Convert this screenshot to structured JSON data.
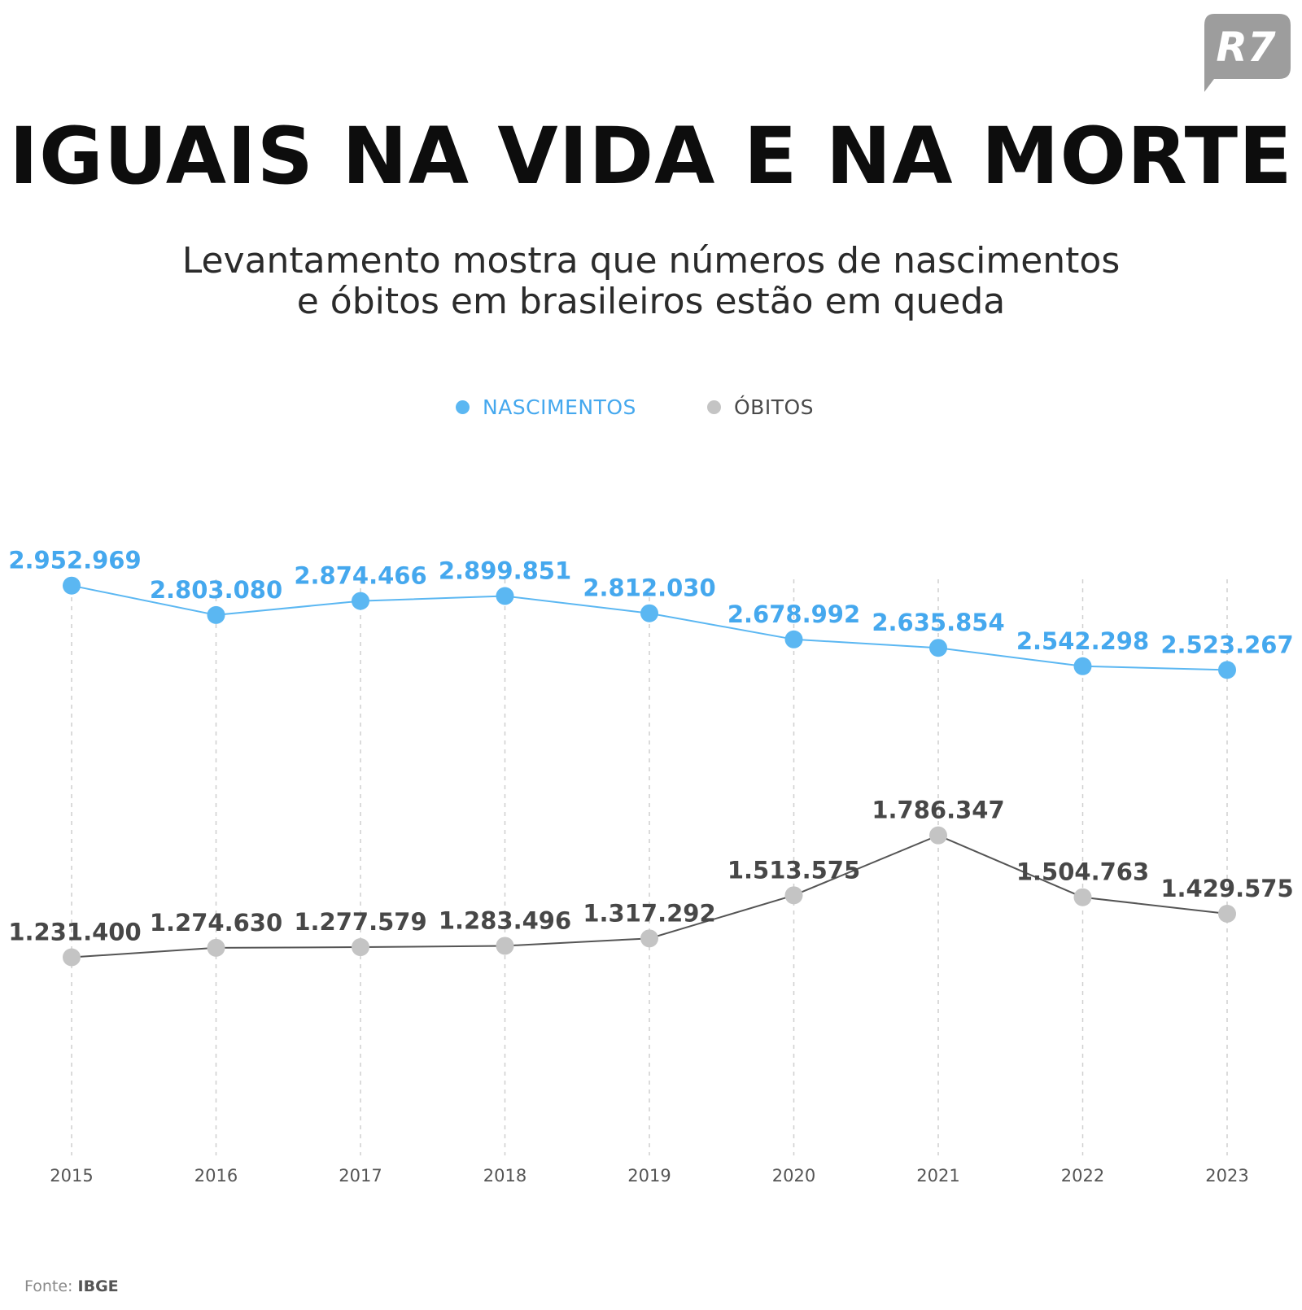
{
  "logo_text": "R7",
  "title": "IGUAIS NA VIDA E NA MORTE",
  "subtitle_lines": [
    "Levantamento mostra que números de nascimentos",
    "e óbitos em brasileiros estão em queda"
  ],
  "legend": {
    "position": "top-center",
    "items": [
      {
        "label": "NASCIMENTOS",
        "color": "#5bb7f2"
      },
      {
        "label": "ÓBITOS",
        "color": "#c4c4c4"
      }
    ]
  },
  "source": {
    "label": "Fonte:",
    "value": "IBGE"
  },
  "chart_data": {
    "type": "line",
    "title": "IGUAIS NA VIDA E NA MORTE",
    "subtitle": "Levantamento mostra que números de nascimentos e óbitos em brasileiros estão em queda",
    "xlabel": "",
    "ylabel": "",
    "grid": "vertical dashed lines at each year",
    "y_axis_visible": false,
    "categories": [
      "2015",
      "2016",
      "2017",
      "2018",
      "2019",
      "2020",
      "2021",
      "2022",
      "2023"
    ],
    "series": [
      {
        "name": "NASCIMENTOS",
        "color": "#5bb7f2",
        "label_color": "#45a8ee",
        "values": [
          2952969,
          2803080,
          2874466,
          2899851,
          2812030,
          2678992,
          2635854,
          2542298,
          2523267
        ],
        "labels": [
          "2.952.969",
          "2.803.080",
          "2.874.466",
          "2.899.851",
          "2.812.030",
          "2.678.992",
          "2.635.854",
          "2.542.298",
          "2.523.267"
        ]
      },
      {
        "name": "ÓBITOS",
        "color": "#c4c4c4",
        "line_color": "#555555",
        "label_color": "#474747",
        "values": [
          1231400,
          1274630,
          1277579,
          1283496,
          1317292,
          1513575,
          1786347,
          1504763,
          1429575
        ],
        "labels": [
          "1.231.400",
          "1.274.630",
          "1.277.579",
          "1.283.496",
          "1.317.292",
          "1.513.575",
          "1.786.347",
          "1.504.763",
          "1.429.575"
        ]
      }
    ]
  }
}
